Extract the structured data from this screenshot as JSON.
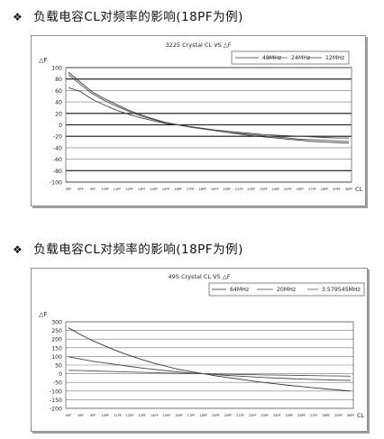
{
  "headings": [
    {
      "bullet": "❖",
      "text": "负载电容CL对频率的影响(18PF为例)"
    },
    {
      "bullet": "❖",
      "text": "负载电容CL对频率的影响(18PF为例)"
    }
  ],
  "chart_data": [
    {
      "type": "line",
      "title": "3225 Crystal CL VS △F",
      "ylabel": "△F",
      "xlabel": "CL",
      "ylim": [
        -100,
        100
      ],
      "ytick_step": 20,
      "grid": "horizontal",
      "legend_position": "top-right",
      "categories": [
        "5PF",
        "6PF",
        "9PF",
        "10PF",
        "11PF",
        "12PF",
        "13PF",
        "14PF",
        "15PF",
        "16PF",
        "17PF",
        "18PF",
        "19PF",
        "20PF",
        "21PF",
        "22PF",
        "23PF",
        "24PF",
        "25PF",
        "26PF",
        "27PF",
        "28PF",
        "29PF",
        "30PF"
      ],
      "series": [
        {
          "name": "48MHz",
          "color": "#333333",
          "values": [
            92,
            74,
            57,
            45,
            35,
            25,
            17,
            10,
            4,
            0,
            -4,
            -7,
            -10,
            -13,
            -16,
            -19,
            -21,
            -23,
            -25,
            -27,
            -29,
            -30,
            -31,
            -32
          ]
        },
        {
          "name": "24MHz",
          "color": "#555555",
          "values": [
            88,
            70,
            54,
            42,
            32,
            23,
            15,
            9,
            3,
            0,
            -4,
            -7,
            -10,
            -13,
            -15,
            -17,
            -19,
            -21,
            -23,
            -25,
            -26,
            -27,
            -28,
            -29
          ]
        },
        {
          "name": "12MHz",
          "color": "#444444",
          "values": [
            65,
            58,
            44,
            34,
            25,
            18,
            12,
            7,
            2,
            0,
            -3,
            -6,
            -9,
            -11,
            -13,
            -15,
            -17,
            -18,
            -19,
            -20,
            -21,
            -22,
            -23,
            -23
          ]
        }
      ]
    },
    {
      "type": "line",
      "title": "49S Crystal CL VS △F",
      "ylabel": "△F",
      "xlabel": "CL",
      "ylim": [
        -200,
        300
      ],
      "ytick_step": 50,
      "grid": "horizontal",
      "legend_position": "top-right",
      "categories": [
        "5PF",
        "6PF",
        "9PF",
        "10PF",
        "11PF",
        "12PF",
        "13PF",
        "14PF",
        "15PF",
        "16PF",
        "17PF",
        "18PF",
        "19PF",
        "20PF",
        "21PF",
        "22PF",
        "23PF",
        "24PF",
        "25PF",
        "26PF",
        "27PF",
        "28PF",
        "29PF",
        "30PF"
      ],
      "series": [
        {
          "name": "64MHz",
          "color": "#333333",
          "values": [
            265,
            225,
            190,
            160,
            130,
            105,
            82,
            60,
            42,
            25,
            12,
            0,
            -12,
            -22,
            -32,
            -42,
            -51,
            -59,
            -67,
            -74,
            -81,
            -88,
            -94,
            -100
          ]
        },
        {
          "name": "20MHz",
          "color": "#444444",
          "values": [
            98,
            85,
            72,
            62,
            52,
            42,
            33,
            25,
            17,
            10,
            4,
            0,
            -5,
            -10,
            -14,
            -18,
            -22,
            -25,
            -28,
            -31,
            -33,
            -35,
            -37,
            -38
          ]
        },
        {
          "name": "3.579545MHz",
          "color": "#555555",
          "values": [
            20,
            18,
            16,
            14,
            12,
            10,
            8,
            6,
            4,
            2,
            1,
            0,
            -1,
            -3,
            -4,
            -5,
            -7,
            -8,
            -9,
            -10,
            -11,
            -12,
            -13,
            -14
          ]
        }
      ]
    }
  ]
}
